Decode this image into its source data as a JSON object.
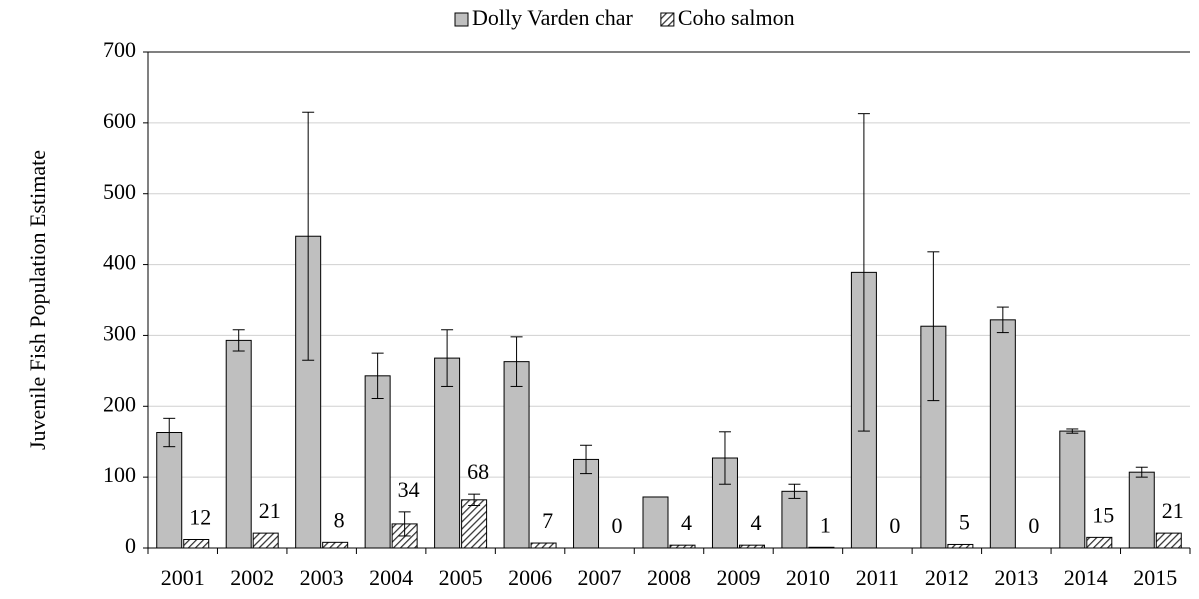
{
  "chart_data": {
    "type": "bar",
    "y_label": "Juvenile Fish Population Estimate",
    "categories": [
      "2001",
      "2002",
      "2003",
      "2004",
      "2005",
      "2006",
      "2007",
      "2008",
      "2009",
      "2010",
      "2011",
      "2012",
      "2013",
      "2014",
      "2015"
    ],
    "series": [
      {
        "name": "Dolly Varden char",
        "color": "#bfbfbf",
        "values": [
          163,
          293,
          440,
          243,
          268,
          263,
          125,
          72,
          127,
          80,
          389,
          313,
          322,
          165,
          107
        ],
        "errors": [
          20,
          15,
          175,
          32,
          40,
          35,
          20,
          0,
          37,
          10,
          224,
          105,
          18,
          3,
          7
        ]
      },
      {
        "name": "Coho salmon",
        "color": "#595959",
        "pattern": "hatch",
        "values": [
          12,
          21,
          8,
          34,
          68,
          7,
          0,
          4,
          4,
          1,
          0,
          5,
          0,
          15,
          21
        ],
        "errors": [
          0,
          0,
          0,
          17,
          8,
          0,
          0,
          0,
          0,
          0,
          0,
          0,
          0,
          0,
          0
        ]
      }
    ],
    "ylim": [
      0,
      700
    ],
    "yticks": [
      0,
      100,
      200,
      300,
      400,
      500,
      600,
      700
    ],
    "grid": true,
    "legend": "top"
  }
}
